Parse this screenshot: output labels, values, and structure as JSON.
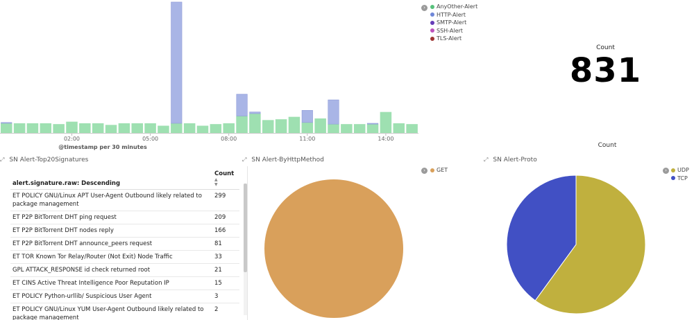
{
  "histogram": {
    "xlabel": "@timestamp per 30 minutes",
    "ticks": [
      {
        "label": "02:00",
        "idx": 5
      },
      {
        "label": "05:00",
        "idx": 11
      },
      {
        "label": "08:00",
        "idx": 17
      },
      {
        "label": "11:00",
        "idx": 23
      },
      {
        "label": "14:00",
        "idx": 29
      }
    ],
    "anyother": [
      12,
      12,
      12,
      12,
      11,
      14,
      12,
      12,
      10,
      12,
      12,
      12,
      9,
      12,
      12,
      9,
      11,
      12,
      21,
      24,
      16,
      17,
      20,
      13,
      18,
      11,
      11,
      11,
      11,
      26,
      12,
      11
    ],
    "http": [
      1,
      0,
      0,
      0,
      0,
      0,
      0,
      0,
      0,
      0,
      0,
      0,
      0,
      150,
      0,
      0,
      0,
      0,
      27,
      2,
      0,
      0,
      0,
      15,
      0,
      30,
      0,
      0,
      1,
      0,
      0,
      0
    ],
    "colors": {
      "anyother": "#9ee0b1",
      "http": "#a9b5e6",
      "anyother_stroke": "#78c894",
      "http_stroke": "#8e9ad8"
    }
  },
  "hist_legend": [
    {
      "label": "AnyOther-Alert",
      "color": "#57c17b"
    },
    {
      "label": "HTTP-Alert",
      "color": "#6f87d8"
    },
    {
      "label": "SMTP-Alert",
      "color": "#663db8"
    },
    {
      "label": "SSH-Alert",
      "color": "#bc52bc"
    },
    {
      "label": "TLS-Alert",
      "color": "#9e3533"
    }
  ],
  "metric": {
    "label": "Count",
    "value": "831"
  },
  "proto_count_label": "Count",
  "panels": {
    "top20": "SN Alert-Top20Signatures",
    "http_method": "SN Alert-ByHttpMethod",
    "proto": "SN Alert-Proto"
  },
  "table": {
    "col1": "alert.signature.raw: Descending",
    "col2": "Count",
    "rows": [
      {
        "sig": "ET POLICY GNU/Linux APT User-Agent Outbound likely related to package management",
        "count": "299"
      },
      {
        "sig": "ET P2P BitTorrent DHT ping request",
        "count": "209"
      },
      {
        "sig": "ET P2P BitTorrent DHT nodes reply",
        "count": "166"
      },
      {
        "sig": "ET P2P BitTorrent DHT announce_peers request",
        "count": "81"
      },
      {
        "sig": "ET TOR Known Tor Relay/Router (Not Exit) Node Traffic",
        "count": "33"
      },
      {
        "sig": "GPL ATTACK_RESPONSE id check returned root",
        "count": "21"
      },
      {
        "sig": "ET CINS Active Threat Intelligence Poor Reputation IP",
        "count": "15"
      },
      {
        "sig": "ET POLICY Python-urllib/ Suspicious User Agent",
        "count": "3"
      },
      {
        "sig": "ET POLICY GNU/Linux YUM User-Agent Outbound likely related to package management",
        "count": "2"
      }
    ]
  },
  "http_pie": {
    "legend": [
      {
        "label": "GET",
        "color": "#d9a05b"
      }
    ],
    "slices": [
      {
        "label": "GET",
        "value": 1,
        "color": "#d9a05b"
      }
    ]
  },
  "proto_pie": {
    "legend": [
      {
        "label": "UDP",
        "color": "#c0b03e"
      },
      {
        "label": "TCP",
        "color": "#4150c4"
      }
    ],
    "slices": [
      {
        "label": "UDP",
        "value": 0.6,
        "color": "#c0b03e"
      },
      {
        "label": "TCP",
        "value": 0.4,
        "color": "#4150c4"
      }
    ]
  }
}
